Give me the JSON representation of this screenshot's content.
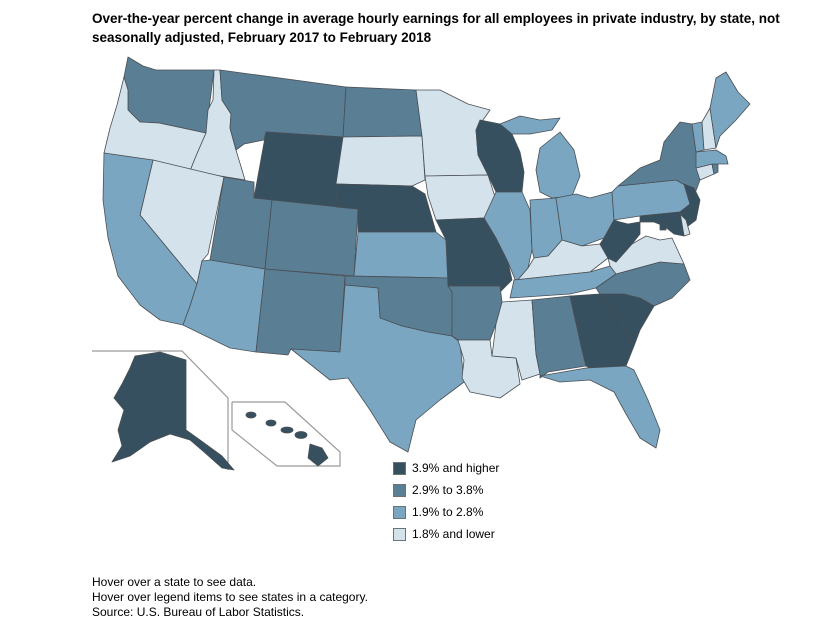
{
  "title": "Over-the-year percent change in average hourly earnings for all employees in private industry, by state, not seasonally adjusted, February 2017 to February 2018",
  "colors": {
    "c4": "#36505f",
    "c3": "#5a7e94",
    "c2": "#7aa6c2",
    "c1": "#d4e2ec"
  },
  "legend": [
    {
      "label": "3.9% and higher",
      "cat": "c4"
    },
    {
      "label": "2.9% to 3.8%",
      "cat": "c3"
    },
    {
      "label": "1.9% to 2.8%",
      "cat": "c2"
    },
    {
      "label": "1.8% and lower",
      "cat": "c1"
    }
  ],
  "states": {
    "WA": "c3",
    "OR": "c1",
    "ID": "c1",
    "MT": "c3",
    "WY": "c4",
    "CA": "c2",
    "NV": "c1",
    "UT": "c3",
    "CO": "c3",
    "AZ": "c2",
    "NM": "c3",
    "ND": "c3",
    "SD": "c1",
    "NE": "c4",
    "KS": "c2",
    "OK": "c3",
    "TX": "c2",
    "MN": "c1",
    "IA": "c1",
    "MO": "c4",
    "AR": "c3",
    "LA": "c1",
    "WI": "c4",
    "IL": "c2",
    "MI": "c2",
    "IN": "c2",
    "OH": "c2",
    "KY": "c1",
    "TN": "c2",
    "MS": "c1",
    "AL": "c3",
    "GA": "c4",
    "FL": "c2",
    "SC": "c4",
    "NC": "c3",
    "VA": "c1",
    "WV": "c4",
    "PA": "c2",
    "NY": "c3",
    "VT": "c2",
    "NH": "c1",
    "ME": "c2",
    "MA": "c2",
    "CT": "c1",
    "RI": "c3",
    "NJ": "c4",
    "DE": "c1",
    "MD": "c4",
    "DC": "c4",
    "AK": "c4",
    "HI": "c4"
  },
  "notes": [
    "Hover over a state to see data.",
    "Hover over legend items to see states in a category.",
    "Source: U.S. Bureau of Labor Statistics."
  ]
}
